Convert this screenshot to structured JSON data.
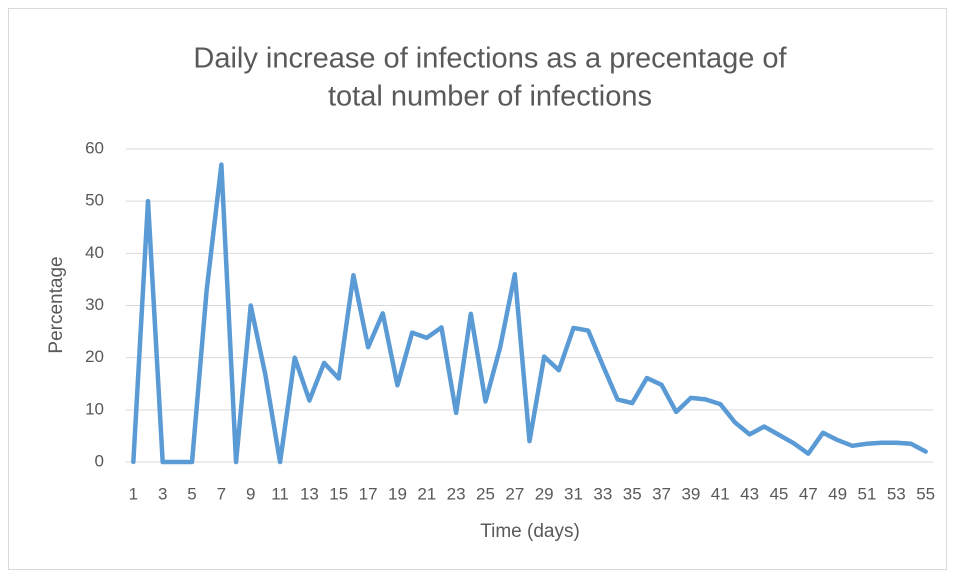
{
  "chart_data": {
    "type": "line",
    "title": [
      "Daily increase of infections as a precentage of",
      "total number of infections"
    ],
    "x_label": "Time (days)",
    "y_label": "Percentage",
    "categories": [
      1,
      null,
      3,
      null,
      5,
      null,
      7,
      null,
      9,
      null,
      11,
      null,
      13,
      null,
      15,
      null,
      17,
      null,
      19,
      null,
      21,
      null,
      23,
      null,
      25,
      null,
      27,
      null,
      29,
      null,
      31,
      null,
      33,
      null,
      35,
      null,
      37,
      null,
      39,
      null,
      41,
      null,
      43,
      null,
      45,
      null,
      47,
      null,
      49,
      null,
      51,
      null,
      53,
      null,
      55
    ],
    "series": [
      {
        "name": "Percentage",
        "color": "#5b9bd5",
        "values": [
          0,
          50,
          0,
          0,
          0,
          33,
          57,
          0,
          30,
          16.7,
          0,
          20,
          11.8,
          19,
          16,
          35.8,
          22,
          28.5,
          14.7,
          24.8,
          23.8,
          25.8,
          9.4,
          28.4,
          11.6,
          22,
          36,
          4,
          20.2,
          17.6,
          25.7,
          25.2,
          18.5,
          12,
          11.3,
          16.1,
          14.8,
          9.6,
          12.3,
          12,
          11.1,
          7.6,
          5.3,
          6.8,
          5.2,
          3.6,
          1.6,
          5.6,
          4.2,
          3.1,
          3.5,
          3.7,
          3.7,
          3.5,
          2
        ]
      }
    ],
    "ylim": [
      0,
      60
    ],
    "yticks": [
      0,
      10,
      20,
      30,
      40,
      50,
      60
    ],
    "grid": true
  }
}
